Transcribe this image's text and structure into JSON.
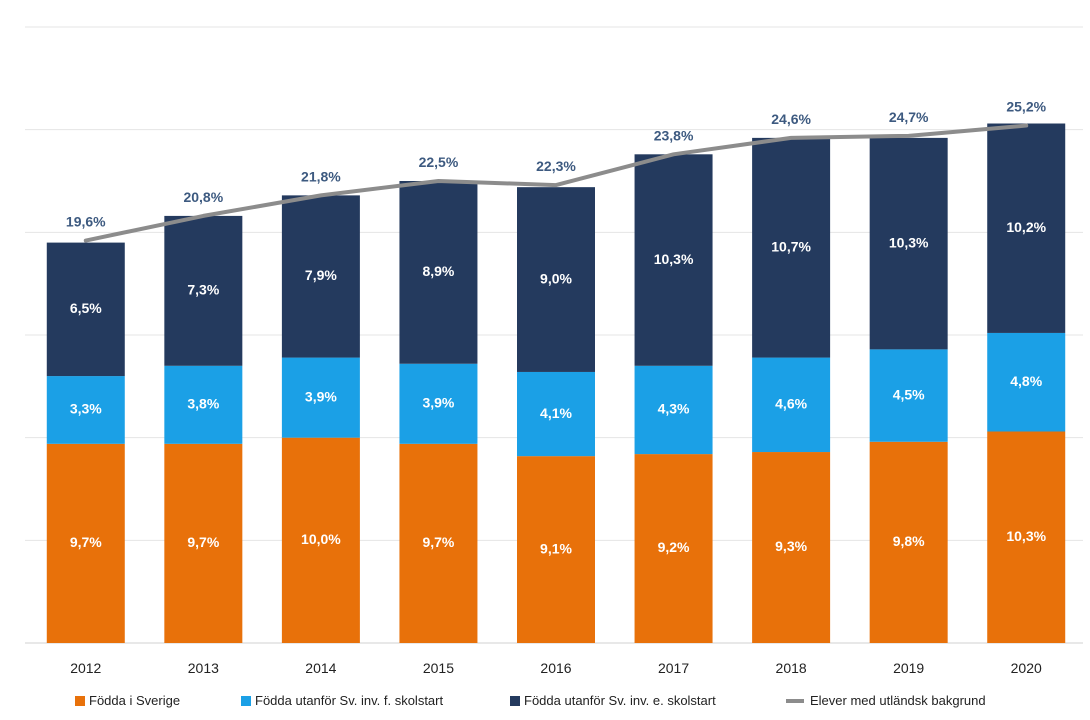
{
  "chart_data": {
    "type": "bar",
    "stacked": true,
    "categories": [
      "2012",
      "2013",
      "2014",
      "2015",
      "2016",
      "2017",
      "2018",
      "2019",
      "2020"
    ],
    "series": [
      {
        "name": "Födda i Sverige",
        "color": "#e8710a",
        "values": [
          9.7,
          9.7,
          10.0,
          9.7,
          9.1,
          9.2,
          9.3,
          9.8,
          10.3
        ],
        "labels": [
          "9,7%",
          "9,7%",
          "10,0%",
          "9,7%",
          "9,1%",
          "9,2%",
          "9,3%",
          "9,8%",
          "10,3%"
        ]
      },
      {
        "name": "Födda utanför Sv. inv. f. skolstart",
        "color": "#1ba0e6",
        "values": [
          3.3,
          3.8,
          3.9,
          3.9,
          4.1,
          4.3,
          4.6,
          4.5,
          4.8
        ],
        "labels": [
          "3,3%",
          "3,8%",
          "3,9%",
          "3,9%",
          "4,1%",
          "4,3%",
          "4,6%",
          "4,5%",
          "4,8%"
        ]
      },
      {
        "name": "Födda utanför Sv. inv. e. skolstart",
        "color": "#243a5e",
        "values": [
          6.5,
          7.3,
          7.9,
          8.9,
          9.0,
          10.3,
          10.7,
          10.3,
          10.2
        ],
        "labels": [
          "6,5%",
          "7,3%",
          "7,9%",
          "8,9%",
          "9,0%",
          "10,3%",
          "10,7%",
          "10,3%",
          "10,2%"
        ]
      }
    ],
    "line_series": {
      "name": "Elever med utländsk bakgrund",
      "color": "#8c8c8c",
      "values": [
        19.6,
        20.8,
        21.8,
        22.5,
        22.3,
        23.8,
        24.6,
        24.7,
        25.2
      ],
      "labels": [
        "19,6%",
        "20,8%",
        "21,8%",
        "22,5%",
        "22,3%",
        "23,8%",
        "24,6%",
        "24,7%",
        "25,2%"
      ]
    },
    "ylim": [
      0,
      30
    ],
    "grid": true,
    "legend_position": "bottom",
    "title": "",
    "xlabel": "",
    "ylabel": ""
  }
}
